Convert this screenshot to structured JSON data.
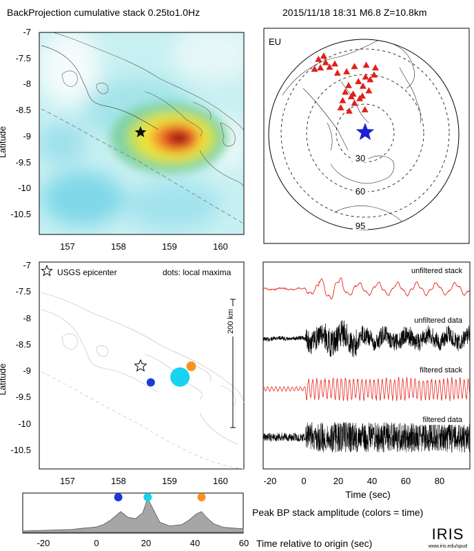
{
  "header": {
    "title_left": "BackProjection cumulative stack 0.25to1.0Hz",
    "title_right": "2015/11/18 18:31  M6.8  Z=10.8km"
  },
  "colors": {
    "epicenter_blue": "#1f1fd6",
    "dot_blue": "#1a3ad8",
    "dot_cyan": "#18d2ef",
    "dot_orange": "#f7941d",
    "station_red": "#e0201a",
    "stack_red": "#e8231c",
    "heat_hot": "#8b1010",
    "profile_fill": "#a6a6a6"
  },
  "map_top": {
    "ylabel": "Latitude",
    "y_ticks": [
      "-7",
      "-7.5",
      "-8",
      "-8.5",
      "-9",
      "-9.5",
      "-10",
      "-10.5"
    ],
    "x_ticks": [
      "157",
      "158",
      "159",
      "160"
    ],
    "epicenter_icon": "star-icon"
  },
  "globe": {
    "region_label": "EU",
    "ring_labels": [
      "30",
      "60",
      "95"
    ],
    "station_icon": "triangle-icon",
    "epicenter_icon": "star-icon"
  },
  "map_bottom": {
    "ylabel": "Latitude",
    "legend_star_label": "USGS epicenter",
    "legend_dots_label": "dots: local maxima",
    "scale_label": "200 km",
    "y_ticks": [
      "-7",
      "-7.5",
      "-8",
      "-8.5",
      "-9",
      "-9.5",
      "-10",
      "-10.5"
    ],
    "x_ticks": [
      "157",
      "158",
      "159",
      "160"
    ]
  },
  "traces": {
    "labels": [
      "unfiltered stack",
      "unfiltered data",
      "filtered stack",
      "filtered data"
    ],
    "xlabel": "Time (sec)",
    "x_ticks": [
      "-20",
      "0",
      "20",
      "40",
      "60",
      "80"
    ]
  },
  "profile": {
    "caption": "Peak BP stack amplitude (colors = time)",
    "xlabel": "Time relative to origin (sec)",
    "x_ticks": [
      "-20",
      "0",
      "20",
      "40",
      "60"
    ]
  },
  "logo": {
    "text": "IRIS",
    "url": "www.iris.edu/spud"
  },
  "chart_data": [
    {
      "type": "heatmap",
      "title": "BackProjection cumulative stack 0.25to1.0Hz",
      "ylabel": "Latitude",
      "xlim": [
        156.5,
        160.5
      ],
      "ylim": [
        -10.85,
        -7
      ],
      "epicenter": {
        "lon": 158.4,
        "lat": -8.93
      },
      "peak": {
        "lon": 159.05,
        "lat": -9.05
      }
    },
    {
      "type": "scatter",
      "title": "EU",
      "ring_labels": [
        "30",
        "60",
        "95"
      ],
      "epicenter": "blue star"
    },
    {
      "type": "scatter",
      "ylabel": "Latitude",
      "xlim": [
        156.5,
        160.5
      ],
      "ylim": [
        -10.85,
        -7
      ],
      "epicenter": {
        "lon": 158.45,
        "lat": -8.93
      },
      "local_maxima": [
        {
          "lon": 158.68,
          "lat": -9.24,
          "time": 9,
          "color": "#1a3ad8"
        },
        {
          "lon": 159.25,
          "lat": -9.14,
          "time": 21,
          "color": "#18d2ef"
        },
        {
          "lon": 159.47,
          "lat": -8.94,
          "time": 43,
          "color": "#f7941d"
        }
      ]
    },
    {
      "type": "line",
      "xlabel": "Time (sec)",
      "xlim": [
        -25,
        97
      ],
      "series": [
        {
          "name": "unfiltered stack"
        },
        {
          "name": "unfiltered data"
        },
        {
          "name": "filtered stack"
        },
        {
          "name": "filtered data"
        }
      ]
    },
    {
      "type": "area",
      "title": "Peak BP stack amplitude (colors = time)",
      "xlabel": "Time relative to origin (sec)",
      "xlim": [
        -30,
        60
      ],
      "x": [
        -30,
        -20,
        -10,
        -5,
        0,
        3,
        6,
        10,
        13,
        16,
        19,
        21,
        23,
        26,
        30,
        35,
        38,
        41,
        43,
        45,
        48,
        52,
        56,
        60
      ],
      "values": [
        0.04,
        0.06,
        0.08,
        0.12,
        0.15,
        0.22,
        0.35,
        0.58,
        0.42,
        0.38,
        0.55,
        0.95,
        0.68,
        0.28,
        0.18,
        0.22,
        0.35,
        0.52,
        0.58,
        0.42,
        0.24,
        0.14,
        0.12,
        0.1
      ],
      "peaks": [
        {
          "time": 9,
          "color": "#1a3ad8"
        },
        {
          "time": 21,
          "color": "#18d2ef"
        },
        {
          "time": 43,
          "color": "#f7941d"
        }
      ]
    }
  ]
}
